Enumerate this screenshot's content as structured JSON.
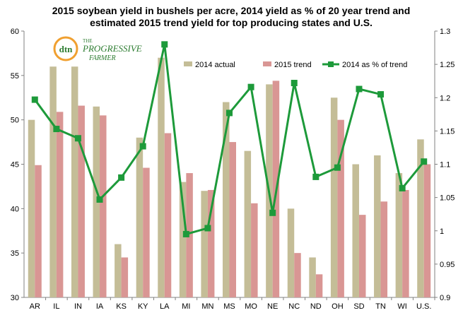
{
  "chart_data": {
    "type": "bar",
    "title_line1": "2015  soybean yield in bushels per acre, 2014 yield as % of 20 year trend and",
    "title_line2": "estimated 2015 trend yield for top producing states and U.S.",
    "categories": [
      "AR",
      "IL",
      "IN",
      "IA",
      "KS",
      "KY",
      "LA",
      "MI",
      "MN",
      "MS",
      "MO",
      "NE",
      "NC",
      "ND",
      "OH",
      "SD",
      "TN",
      "WI",
      "U.S."
    ],
    "series": [
      {
        "name": "2014 actual",
        "axis": "left",
        "kind": "bar",
        "color": "#c4bd97",
        "values": [
          50,
          56,
          56,
          51.5,
          36,
          48,
          57,
          43,
          42,
          52,
          46.5,
          54,
          40,
          34.5,
          52.5,
          45,
          46,
          44,
          47.8
        ]
      },
      {
        "name": "2015 trend",
        "axis": "left",
        "kind": "bar",
        "color": "#d99694",
        "values": [
          44.9,
          50.9,
          51.6,
          50.5,
          34.5,
          44.6,
          48.5,
          44,
          42.1,
          47.5,
          40.6,
          54.4,
          35,
          32.6,
          50,
          39.3,
          40.8,
          42.1,
          45
        ]
      },
      {
        "name": "2014 as % of trend",
        "axis": "right",
        "kind": "line",
        "color": "#1d9a3a",
        "values": [
          1.197,
          1.153,
          1.139,
          1.047,
          1.08,
          1.127,
          1.28,
          0.995,
          1.004,
          1.177,
          1.216,
          1.027,
          1.222,
          1.081,
          1.095,
          1.213,
          1.205,
          1.064,
          1.104
        ]
      }
    ],
    "y_left": {
      "min": 30,
      "max": 60,
      "ticks": [
        30,
        35,
        40,
        45,
        50,
        55,
        60
      ]
    },
    "y_right": {
      "min": 0.9,
      "max": 1.3,
      "ticks": [
        "0.9",
        "0.95",
        "1",
        "1.05",
        "1.1",
        "1.15",
        "1.2",
        "1.25",
        "1.3"
      ]
    },
    "grid": false,
    "legend_position": "top-right"
  },
  "logo": {
    "text_dtn": "dtn",
    "text_the": "THE",
    "text_name": "PROGRESSIVE",
    "text_name2": "FARMER"
  }
}
